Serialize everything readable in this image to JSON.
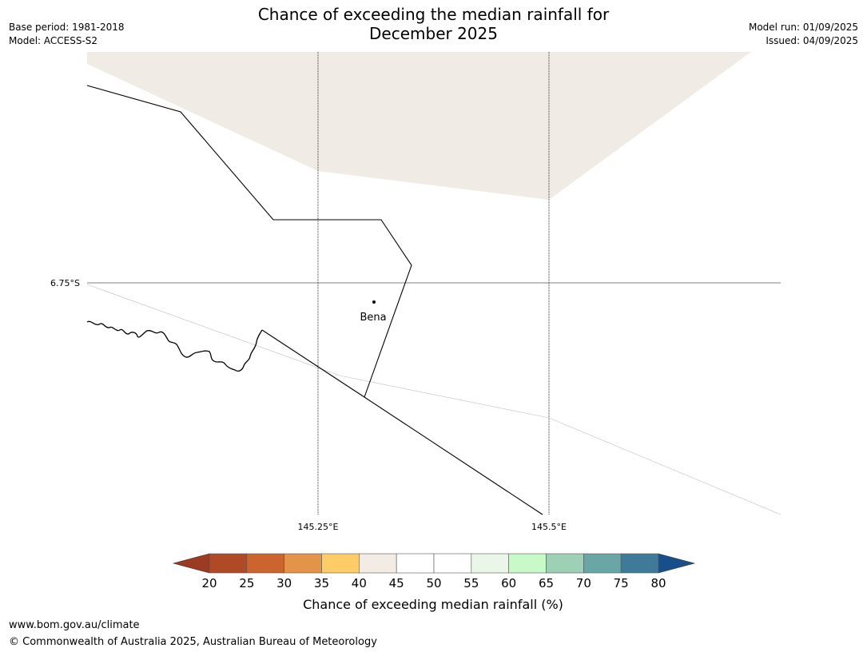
{
  "title_line1": "Chance of exceeding the median rainfall for",
  "title_line2": "December 2025",
  "meta": {
    "base_period": "Base period: 1981-2018",
    "model": "Model: ACCESS-S2",
    "model_run": "Model run: 01/09/2025",
    "issued": "Issued: 04/09/2025"
  },
  "map": {
    "lat_label": "6.75°S",
    "lon_labels": [
      "145.25°E",
      "145.5°E"
    ],
    "place": {
      "name": "Bena"
    },
    "shading_category": "40–45"
  },
  "colorbar": {
    "ticks": [
      "20",
      "25",
      "30",
      "35",
      "40",
      "45",
      "50",
      "55",
      "60",
      "65",
      "70",
      "75",
      "80"
    ],
    "colors": [
      "#b04a26",
      "#cc6430",
      "#e39448",
      "#fecd67",
      "#f2ece5",
      "#ffffff",
      "#ffffff",
      "#eaf6e8",
      "#c8fac8",
      "#9ed0b6",
      "#6ba6a6",
      "#3f7a99"
    ],
    "under_color": "#9b3b23",
    "over_color": "#174f8a",
    "label": "Chance of exceeding median rainfall (%)"
  },
  "footer": {
    "url": "www.bom.gov.au/climate",
    "copyright": "© Commonwealth of Australia 2025, Australian Bureau of Meteorology"
  }
}
